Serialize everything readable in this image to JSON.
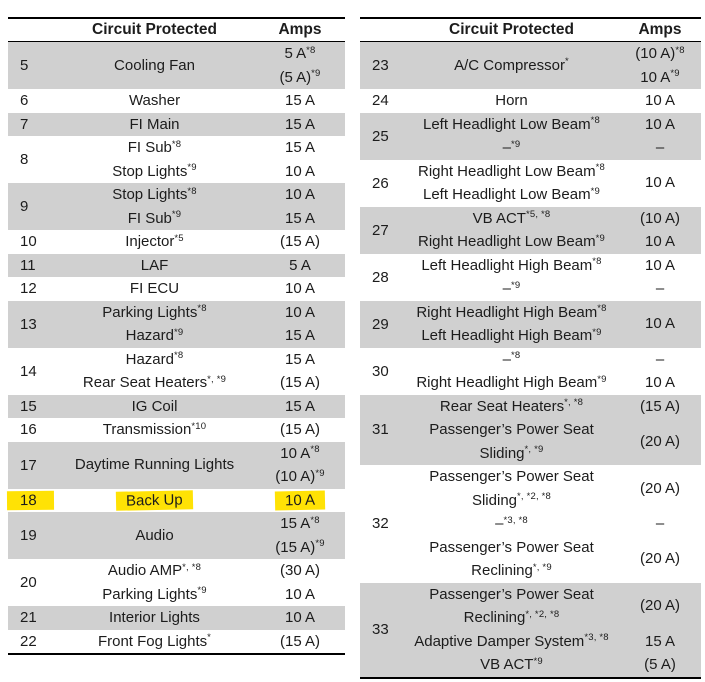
{
  "colors": {
    "row_shade": "#d0d0d0",
    "highlighter_yellow": "#ffe205",
    "border": "#000000",
    "text": "#1c1c1c"
  },
  "tables": {
    "left": {
      "header": {
        "circuit": "Circuit Protected",
        "amps": "Amps"
      },
      "rows": [
        {
          "num": "5",
          "shaded": true,
          "entries": [
            {
              "c": [
                [
                  "Cooling Fan",
                  ""
                ]
              ],
              "a": [
                [
                  "5 A",
                  "*8"
                ],
                [
                  "(5 A)",
                  "*9"
                ]
              ]
            }
          ]
        },
        {
          "num": "6",
          "shaded": false,
          "entries": [
            {
              "c": [
                [
                  "Washer",
                  ""
                ]
              ],
              "a": [
                [
                  "15 A",
                  ""
                ]
              ]
            }
          ]
        },
        {
          "num": "7",
          "shaded": true,
          "entries": [
            {
              "c": [
                [
                  "FI Main",
                  ""
                ]
              ],
              "a": [
                [
                  "15 A",
                  ""
                ]
              ]
            }
          ]
        },
        {
          "num": "8",
          "shaded": false,
          "entries": [
            {
              "c": [
                [
                  "FI Sub",
                  "*8"
                ]
              ],
              "a": [
                [
                  "15 A",
                  ""
                ]
              ]
            },
            {
              "c": [
                [
                  "Stop Lights",
                  "*9"
                ]
              ],
              "a": [
                [
                  "10 A",
                  ""
                ]
              ]
            }
          ]
        },
        {
          "num": "9",
          "shaded": true,
          "entries": [
            {
              "c": [
                [
                  "Stop Lights",
                  "*8"
                ]
              ],
              "a": [
                [
                  "10 A",
                  ""
                ]
              ]
            },
            {
              "c": [
                [
                  "FI Sub",
                  "*9"
                ]
              ],
              "a": [
                [
                  "15 A",
                  ""
                ]
              ]
            }
          ]
        },
        {
          "num": "10",
          "shaded": false,
          "entries": [
            {
              "c": [
                [
                  "Injector",
                  "*5"
                ]
              ],
              "a": [
                [
                  "(15 A)",
                  ""
                ]
              ]
            }
          ]
        },
        {
          "num": "11",
          "shaded": true,
          "entries": [
            {
              "c": [
                [
                  "LAF",
                  ""
                ]
              ],
              "a": [
                [
                  "5 A",
                  ""
                ]
              ]
            }
          ]
        },
        {
          "num": "12",
          "shaded": false,
          "entries": [
            {
              "c": [
                [
                  "FI ECU",
                  ""
                ]
              ],
              "a": [
                [
                  "10 A",
                  ""
                ]
              ]
            }
          ]
        },
        {
          "num": "13",
          "shaded": true,
          "entries": [
            {
              "c": [
                [
                  "Parking Lights",
                  "*8"
                ]
              ],
              "a": [
                [
                  "10 A",
                  ""
                ]
              ]
            },
            {
              "c": [
                [
                  "Hazard",
                  "*9"
                ]
              ],
              "a": [
                [
                  "15 A",
                  ""
                ]
              ]
            }
          ]
        },
        {
          "num": "14",
          "shaded": false,
          "entries": [
            {
              "c": [
                [
                  "Hazard",
                  "*8"
                ]
              ],
              "a": [
                [
                  "15 A",
                  ""
                ]
              ]
            },
            {
              "c": [
                [
                  "Rear Seat Heaters",
                  "*, *9"
                ]
              ],
              "a": [
                [
                  "(15 A)",
                  ""
                ]
              ]
            }
          ]
        },
        {
          "num": "15",
          "shaded": true,
          "entries": [
            {
              "c": [
                [
                  "IG Coil",
                  ""
                ]
              ],
              "a": [
                [
                  "15 A",
                  ""
                ]
              ]
            }
          ]
        },
        {
          "num": "16",
          "shaded": false,
          "entries": [
            {
              "c": [
                [
                  "Transmission",
                  "*10"
                ]
              ],
              "a": [
                [
                  "(15 A)",
                  ""
                ]
              ]
            }
          ]
        },
        {
          "num": "17",
          "shaded": true,
          "entries": [
            {
              "c": [
                [
                  "Daytime Running Lights",
                  ""
                ]
              ],
              "a": [
                [
                  "10 A",
                  "*8"
                ],
                [
                  "(10 A)",
                  "*9"
                ]
              ]
            }
          ]
        },
        {
          "num": "18",
          "shaded": false,
          "highlighted": true,
          "entries": [
            {
              "c": [
                [
                  "Back Up",
                  ""
                ]
              ],
              "a": [
                [
                  "10 A",
                  ""
                ]
              ]
            }
          ]
        },
        {
          "num": "19",
          "shaded": true,
          "entries": [
            {
              "c": [
                [
                  "Audio",
                  ""
                ]
              ],
              "a": [
                [
                  "15 A",
                  "*8"
                ],
                [
                  "(15 A)",
                  "*9"
                ]
              ]
            }
          ]
        },
        {
          "num": "20",
          "shaded": false,
          "entries": [
            {
              "c": [
                [
                  "Audio AMP",
                  "*, *8"
                ]
              ],
              "a": [
                [
                  "(30 A)",
                  ""
                ]
              ]
            },
            {
              "c": [
                [
                  "Parking Lights",
                  "*9"
                ]
              ],
              "a": [
                [
                  "10 A",
                  ""
                ]
              ]
            }
          ]
        },
        {
          "num": "21",
          "shaded": true,
          "entries": [
            {
              "c": [
                [
                  "Interior Lights",
                  ""
                ]
              ],
              "a": [
                [
                  "10 A",
                  ""
                ]
              ]
            }
          ]
        },
        {
          "num": "22",
          "shaded": false,
          "entries": [
            {
              "c": [
                [
                  "Front Fog Lights",
                  "*"
                ]
              ],
              "a": [
                [
                  "(15 A)",
                  ""
                ]
              ]
            }
          ]
        }
      ]
    },
    "right": {
      "header": {
        "circuit": "Circuit Protected",
        "amps": "Amps"
      },
      "rows": [
        {
          "num": "23",
          "shaded": true,
          "entries": [
            {
              "c": [
                [
                  "A/C Compressor",
                  "*"
                ]
              ],
              "a": [
                [
                  "(10 A)",
                  "*8"
                ],
                [
                  "10 A",
                  "*9"
                ]
              ]
            }
          ]
        },
        {
          "num": "24",
          "shaded": false,
          "entries": [
            {
              "c": [
                [
                  "Horn",
                  ""
                ]
              ],
              "a": [
                [
                  "10 A",
                  ""
                ]
              ]
            }
          ]
        },
        {
          "num": "25",
          "shaded": true,
          "entries": [
            {
              "c": [
                [
                  "Left Headlight Low Beam",
                  "*8"
                ]
              ],
              "a": [
                [
                  "10 A",
                  ""
                ]
              ]
            },
            {
              "c": [
                [
                  "–",
                  "*9"
                ]
              ],
              "a": [
                [
                  "–",
                  ""
                ]
              ]
            }
          ]
        },
        {
          "num": "26",
          "shaded": false,
          "entries": [
            {
              "c": [
                [
                  "Right Headlight Low Beam",
                  "*8"
                ],
                [
                  "Left Headlight Low Beam",
                  "*9"
                ]
              ],
              "a": [
                [
                  "10 A",
                  ""
                ]
              ]
            }
          ]
        },
        {
          "num": "27",
          "shaded": true,
          "entries": [
            {
              "c": [
                [
                  "VB ACT",
                  "*5, *8"
                ]
              ],
              "a": [
                [
                  "(10 A)",
                  ""
                ]
              ]
            },
            {
              "c": [
                [
                  "Right Headlight Low Beam",
                  "*9"
                ]
              ],
              "a": [
                [
                  "10 A",
                  ""
                ]
              ]
            }
          ]
        },
        {
          "num": "28",
          "shaded": false,
          "entries": [
            {
              "c": [
                [
                  "Left Headlight High Beam",
                  "*8"
                ]
              ],
              "a": [
                [
                  "10 A",
                  ""
                ]
              ]
            },
            {
              "c": [
                [
                  "–",
                  "*9"
                ]
              ],
              "a": [
                [
                  "–",
                  ""
                ]
              ]
            }
          ]
        },
        {
          "num": "29",
          "shaded": true,
          "entries": [
            {
              "c": [
                [
                  "Right Headlight High Beam",
                  "*8"
                ],
                [
                  "Left Headlight High Beam",
                  "*9"
                ]
              ],
              "a": [
                [
                  "10 A",
                  ""
                ]
              ]
            }
          ]
        },
        {
          "num": "30",
          "shaded": false,
          "entries": [
            {
              "c": [
                [
                  "–",
                  "*8"
                ]
              ],
              "a": [
                [
                  "–",
                  ""
                ]
              ]
            },
            {
              "c": [
                [
                  "Right Headlight High Beam",
                  "*9"
                ]
              ],
              "a": [
                [
                  "10 A",
                  ""
                ]
              ]
            }
          ]
        },
        {
          "num": "31",
          "shaded": true,
          "entries": [
            {
              "c": [
                [
                  "Rear Seat Heaters",
                  "*, *8"
                ]
              ],
              "a": [
                [
                  "(15 A)",
                  ""
                ]
              ]
            },
            {
              "c": [
                [
                  "Passenger’s Power Seat",
                  ""
                ],
                [
                  "Sliding",
                  "*, *9"
                ]
              ],
              "a": [
                [
                  "(20 A)",
                  ""
                ]
              ]
            }
          ]
        },
        {
          "num": "32",
          "shaded": false,
          "entries": [
            {
              "c": [
                [
                  "Passenger’s Power Seat",
                  ""
                ],
                [
                  "Sliding",
                  "*, *2, *8"
                ]
              ],
              "a": [
                [
                  "(20 A)",
                  ""
                ]
              ]
            },
            {
              "c": [
                [
                  "–",
                  "*3, *8"
                ]
              ],
              "a": [
                [
                  "–",
                  ""
                ]
              ]
            },
            {
              "c": [
                [
                  "Passenger’s Power Seat",
                  ""
                ],
                [
                  "Reclining",
                  "*, *9"
                ]
              ],
              "a": [
                [
                  "(20 A)",
                  ""
                ]
              ]
            }
          ]
        },
        {
          "num": "33",
          "shaded": true,
          "entries": [
            {
              "c": [
                [
                  "Passenger’s Power Seat",
                  ""
                ],
                [
                  "Reclining",
                  "*, *2, *8"
                ]
              ],
              "a": [
                [
                  "(20 A)",
                  ""
                ]
              ]
            },
            {
              "c": [
                [
                  "Adaptive Damper System",
                  "*3, *8"
                ]
              ],
              "a": [
                [
                  "15 A",
                  ""
                ]
              ]
            },
            {
              "c": [
                [
                  "VB ACT",
                  "*9"
                ]
              ],
              "a": [
                [
                  "(5 A)",
                  ""
                ]
              ]
            }
          ]
        }
      ]
    }
  }
}
